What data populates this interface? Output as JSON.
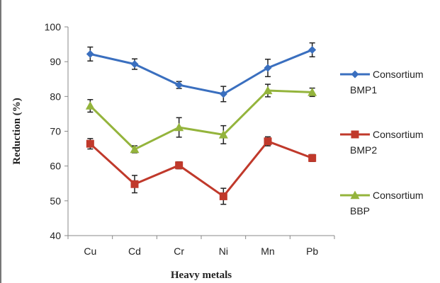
{
  "chart_data": {
    "type": "line",
    "xlabel": "Heavy metals",
    "ylabel": "Reduction (%)",
    "categories": [
      "Cu",
      "Cd",
      "Cr",
      "Ni",
      "Mn",
      "Pb"
    ],
    "ylim": [
      40,
      100
    ],
    "yticks": [
      40,
      50,
      60,
      70,
      80,
      90,
      100
    ],
    "grid": false,
    "legend_position": "right",
    "series": [
      {
        "name": "Consortium BMP1",
        "name_lines": [
          "Consortium",
          "BMP1"
        ],
        "color": "#3a6fbf",
        "marker": "diamond",
        "values": [
          92.2,
          89.3,
          83.3,
          80.7,
          88.2,
          93.4
        ],
        "errors": [
          2.0,
          1.5,
          1.0,
          2.2,
          2.5,
          2.0
        ]
      },
      {
        "name": "Consortium BMP2",
        "name_lines": [
          "Consortium",
          "BMP2"
        ],
        "color": "#c0392b",
        "marker": "square",
        "values": [
          66.4,
          54.8,
          60.2,
          51.3,
          67.1,
          62.3
        ],
        "errors": [
          1.5,
          2.5,
          1.0,
          2.3,
          1.3,
          1.0
        ]
      },
      {
        "name": "Consortium BBP",
        "name_lines": [
          "Consortium",
          "BBP"
        ],
        "color": "#94b43c",
        "marker": "triangle",
        "values": [
          77.3,
          64.8,
          71.1,
          69.0,
          81.7,
          81.2
        ],
        "errors": [
          1.8,
          1.0,
          2.8,
          2.6,
          1.8,
          1.2
        ]
      }
    ]
  }
}
